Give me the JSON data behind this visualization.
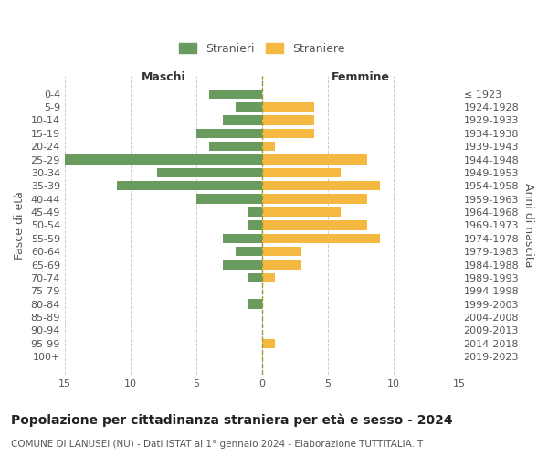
{
  "age_groups": [
    "0-4",
    "5-9",
    "10-14",
    "15-19",
    "20-24",
    "25-29",
    "30-34",
    "35-39",
    "40-44",
    "45-49",
    "50-54",
    "55-59",
    "60-64",
    "65-69",
    "70-74",
    "75-79",
    "80-84",
    "85-89",
    "90-94",
    "95-99",
    "100+"
  ],
  "birth_years": [
    "2019-2023",
    "2014-2018",
    "2009-2013",
    "2004-2008",
    "1999-2003",
    "1994-1998",
    "1989-1993",
    "1984-1988",
    "1979-1983",
    "1974-1978",
    "1969-1973",
    "1964-1968",
    "1959-1963",
    "1954-1958",
    "1949-1953",
    "1944-1948",
    "1939-1943",
    "1934-1938",
    "1929-1933",
    "1924-1928",
    "≤ 1923"
  ],
  "males": [
    4,
    2,
    3,
    5,
    4,
    15,
    8,
    11,
    5,
    1,
    1,
    3,
    2,
    3,
    1,
    0,
    1,
    0,
    0,
    0,
    0
  ],
  "females": [
    0,
    4,
    4,
    4,
    1,
    8,
    6,
    9,
    8,
    6,
    8,
    9,
    3,
    3,
    1,
    0,
    0,
    0,
    0,
    1,
    0
  ],
  "male_color": "#6a9b5e",
  "female_color": "#f5b942",
  "bar_height": 0.72,
  "xlim": 15,
  "title": "Popolazione per cittadinanza straniera per età e sesso - 2024",
  "subtitle": "COMUNE DI LANUSEI (NU) - Dati ISTAT al 1° gennaio 2024 - Elaborazione TUTTITALIA.IT",
  "ylabel_left": "Fasce di età",
  "ylabel_right": "Anni di nascita",
  "xlabel_left": "Maschi",
  "xlabel_top_right": "Femmine",
  "legend_stranieri": "Stranieri",
  "legend_straniere": "Straniere",
  "background_color": "#ffffff",
  "grid_color": "#cccccc",
  "center_line_color": "#999933",
  "text_color": "#555555",
  "title_fontsize": 10,
  "subtitle_fontsize": 7.5,
  "tick_fontsize": 8,
  "label_fontsize": 9
}
